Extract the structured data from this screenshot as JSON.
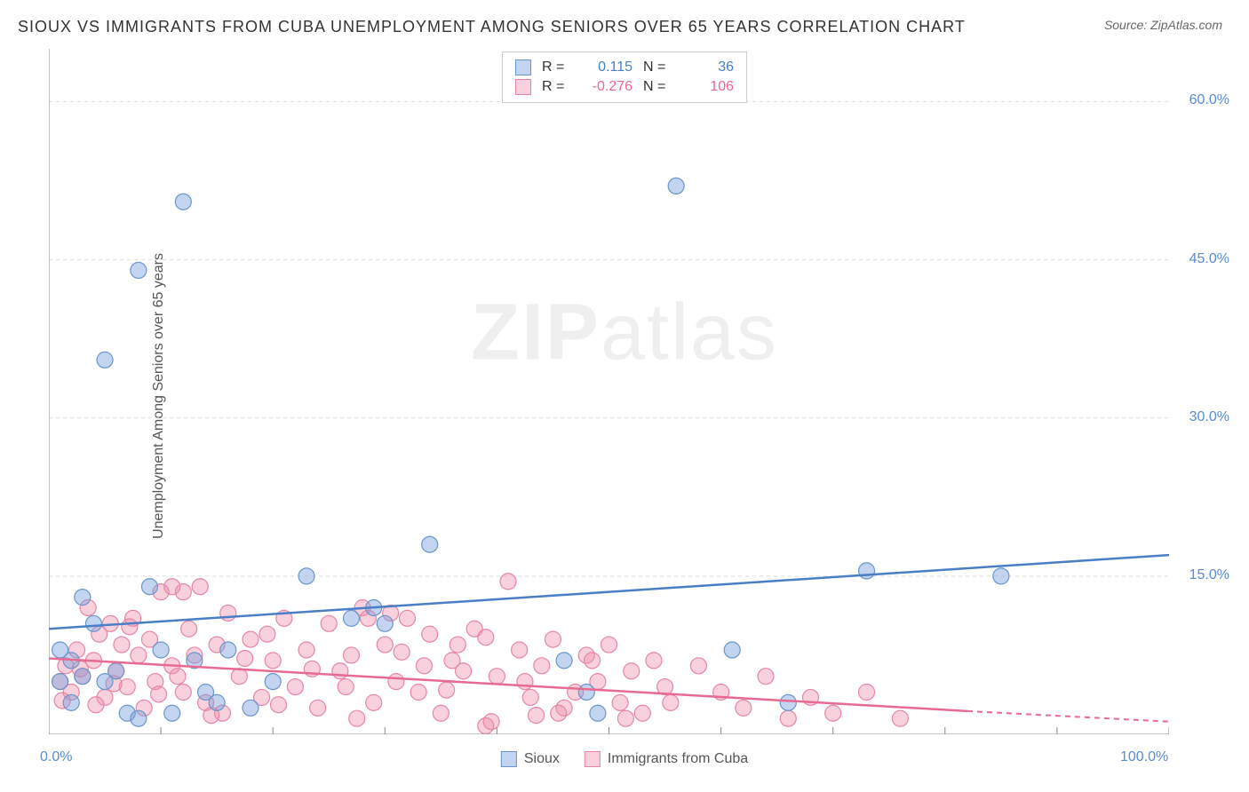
{
  "title": "SIOUX VS IMMIGRANTS FROM CUBA UNEMPLOYMENT AMONG SENIORS OVER 65 YEARS CORRELATION CHART",
  "source": "Source: ZipAtlas.com",
  "y_axis_label": "Unemployment Among Seniors over 65 years",
  "watermark_1": "ZIP",
  "watermark_2": "atlas",
  "colors": {
    "blue_line": "#4a7fc8",
    "blue_fill": "rgba(120,160,220,0.45)",
    "blue_stroke": "#6a95cc",
    "pink_line": "#e86a90",
    "pink_fill": "rgba(240,140,170,0.40)",
    "pink_stroke": "#e686a5",
    "axis": "#888888",
    "grid": "#dddddd",
    "tick_blue": "#5a8cd0",
    "tick_pink": "#e86a90"
  },
  "legend_top": {
    "rows": [
      {
        "swatch_fill": "rgba(120,160,220,0.45)",
        "swatch_border": "#6a95cc",
        "r_label": "R =",
        "r_value": "0.115",
        "n_label": "N =",
        "n_value": "36",
        "value_color": "#4a7fc8"
      },
      {
        "swatch_fill": "rgba(240,140,170,0.40)",
        "swatch_border": "#e686a5",
        "r_label": "R =",
        "r_value": "-0.276",
        "n_label": "N =",
        "n_value": "106",
        "value_color": "#e86a90"
      }
    ]
  },
  "legend_bottom": {
    "items": [
      {
        "swatch_fill": "rgba(120,160,220,0.45)",
        "swatch_border": "#6a95cc",
        "label": "Sioux"
      },
      {
        "swatch_fill": "rgba(240,140,170,0.40)",
        "swatch_border": "#e686a5",
        "label": "Immigrants from Cuba"
      }
    ]
  },
  "chart": {
    "type": "scatter",
    "xlim": [
      0,
      100
    ],
    "ylim": [
      0,
      65
    ],
    "x_ticks": [
      0,
      10,
      20,
      30,
      40,
      50,
      60,
      70,
      80,
      90,
      100
    ],
    "y_ticks": [
      15,
      30,
      45,
      60
    ],
    "x_tick_labels_shown": [
      {
        "value": 0,
        "label": "0.0%",
        "color": "#5a8cd0"
      },
      {
        "value": 100,
        "label": "100.0%",
        "color": "#5a8cd0"
      }
    ],
    "y_tick_labels_shown": [
      {
        "value": 15,
        "label": "15.0%",
        "color": "#5a8cd0"
      },
      {
        "value": 30,
        "label": "30.0%",
        "color": "#5a8cd0"
      },
      {
        "value": 45,
        "label": "45.0%",
        "color": "#5a8cd0"
      },
      {
        "value": 60,
        "label": "60.0%",
        "color": "#5a8cd0"
      }
    ],
    "marker_radius": 9,
    "marker_opacity": 0.55,
    "series": [
      {
        "name": "Sioux",
        "color_fill": "rgba(120,160,220,0.45)",
        "color_stroke": "#6a95cc",
        "trend": {
          "x1": 0,
          "y1": 10,
          "x2": 100,
          "y2": 17,
          "dash_from_x": 100
        },
        "points": [
          [
            3,
            13
          ],
          [
            5,
            35.5
          ],
          [
            8,
            44
          ],
          [
            12,
            50.5
          ],
          [
            56,
            52
          ],
          [
            9,
            14
          ],
          [
            11,
            2
          ],
          [
            2,
            7
          ],
          [
            1,
            5
          ],
          [
            23,
            15
          ],
          [
            29,
            12
          ],
          [
            30,
            10.5
          ],
          [
            34,
            18
          ],
          [
            46,
            7
          ],
          [
            49,
            2
          ],
          [
            61,
            8
          ],
          [
            66,
            3
          ],
          [
            73,
            15.5
          ],
          [
            85,
            15
          ],
          [
            5,
            5
          ],
          [
            1,
            8
          ],
          [
            3,
            5.5
          ],
          [
            7,
            2
          ],
          [
            10,
            8
          ],
          [
            13,
            7
          ],
          [
            15,
            3
          ],
          [
            27,
            11
          ],
          [
            4,
            10.5
          ],
          [
            2,
            3
          ],
          [
            6,
            6
          ],
          [
            8,
            1.5
          ],
          [
            14,
            4
          ],
          [
            16,
            8
          ],
          [
            18,
            2.5
          ],
          [
            20,
            5
          ],
          [
            48,
            4
          ]
        ]
      },
      {
        "name": "Immigrants from Cuba",
        "color_fill": "rgba(240,140,170,0.40)",
        "color_stroke": "#e686a5",
        "trend": {
          "x1": 0,
          "y1": 7.2,
          "x2": 82,
          "y2": 2.2,
          "dash_from_x": 82,
          "dash_to_x": 100,
          "dash_to_y": 1.2
        },
        "points": [
          [
            1,
            5
          ],
          [
            1.5,
            6.5
          ],
          [
            2,
            4
          ],
          [
            2.5,
            8
          ],
          [
            3,
            5.5
          ],
          [
            3.5,
            12
          ],
          [
            4,
            7
          ],
          [
            4.5,
            9.5
          ],
          [
            5,
            3.5
          ],
          [
            5.5,
            10.5
          ],
          [
            6,
            6
          ],
          [
            6.5,
            8.5
          ],
          [
            7,
            4.5
          ],
          [
            7.5,
            11
          ],
          [
            8,
            7.5
          ],
          [
            8.5,
            2.5
          ],
          [
            9,
            9
          ],
          [
            9.5,
            5
          ],
          [
            10,
            13.5
          ],
          [
            11,
            6.5
          ],
          [
            12,
            4
          ],
          [
            12.5,
            10
          ],
          [
            13,
            7.5
          ],
          [
            14,
            3
          ],
          [
            15,
            8.5
          ],
          [
            15.5,
            2
          ],
          [
            16,
            11.5
          ],
          [
            17,
            5.5
          ],
          [
            18,
            9
          ],
          [
            19,
            3.5
          ],
          [
            20,
            7
          ],
          [
            21,
            11
          ],
          [
            22,
            4.5
          ],
          [
            23,
            8
          ],
          [
            24,
            2.5
          ],
          [
            25,
            10.5
          ],
          [
            26,
            6
          ],
          [
            27,
            7.5
          ],
          [
            28,
            12
          ],
          [
            28.5,
            11
          ],
          [
            29,
            3
          ],
          [
            30,
            8.5
          ],
          [
            31,
            5
          ],
          [
            32,
            11
          ],
          [
            33,
            4
          ],
          [
            34,
            9.5
          ],
          [
            35,
            2
          ],
          [
            36,
            7
          ],
          [
            37,
            6
          ],
          [
            38,
            10
          ],
          [
            39,
            0.8
          ],
          [
            40,
            5.5
          ],
          [
            41,
            14.5
          ],
          [
            42,
            8
          ],
          [
            43,
            3.5
          ],
          [
            44,
            6.5
          ],
          [
            45,
            9
          ],
          [
            46,
            2.5
          ],
          [
            47,
            4
          ],
          [
            48,
            7.5
          ],
          [
            49,
            5
          ],
          [
            50,
            8.5
          ],
          [
            51,
            3
          ],
          [
            52,
            6
          ],
          [
            53,
            2
          ],
          [
            54,
            7
          ],
          [
            55,
            4.5
          ],
          [
            11,
            14
          ],
          [
            12,
            13.5
          ],
          [
            13.5,
            14
          ],
          [
            19.5,
            9.5
          ],
          [
            26.5,
            4.5
          ],
          [
            30.5,
            11.5
          ],
          [
            33.5,
            6.5
          ],
          [
            36.5,
            8.5
          ],
          [
            39.5,
            1.2
          ],
          [
            42.5,
            5
          ],
          [
            45.5,
            2
          ],
          [
            48.5,
            7
          ],
          [
            51.5,
            1.5
          ],
          [
            55.5,
            3
          ],
          [
            58,
            6.5
          ],
          [
            60,
            4
          ],
          [
            62,
            2.5
          ],
          [
            64,
            5.5
          ],
          [
            66,
            1.5
          ],
          [
            68,
            3.5
          ],
          [
            70,
            2
          ],
          [
            73,
            4
          ],
          [
            76,
            1.5
          ],
          [
            1.2,
            3.2
          ],
          [
            2.8,
            6.2
          ],
          [
            4.2,
            2.8
          ],
          [
            5.8,
            4.8
          ],
          [
            7.2,
            10.2
          ],
          [
            9.8,
            3.8
          ],
          [
            11.5,
            5.5
          ],
          [
            14.5,
            1.8
          ],
          [
            17.5,
            7.2
          ],
          [
            20.5,
            2.8
          ],
          [
            23.5,
            6.2
          ],
          [
            27.5,
            1.5
          ],
          [
            31.5,
            7.8
          ],
          [
            35.5,
            4.2
          ],
          [
            39,
            9.2
          ],
          [
            43.5,
            1.8
          ]
        ]
      }
    ]
  }
}
